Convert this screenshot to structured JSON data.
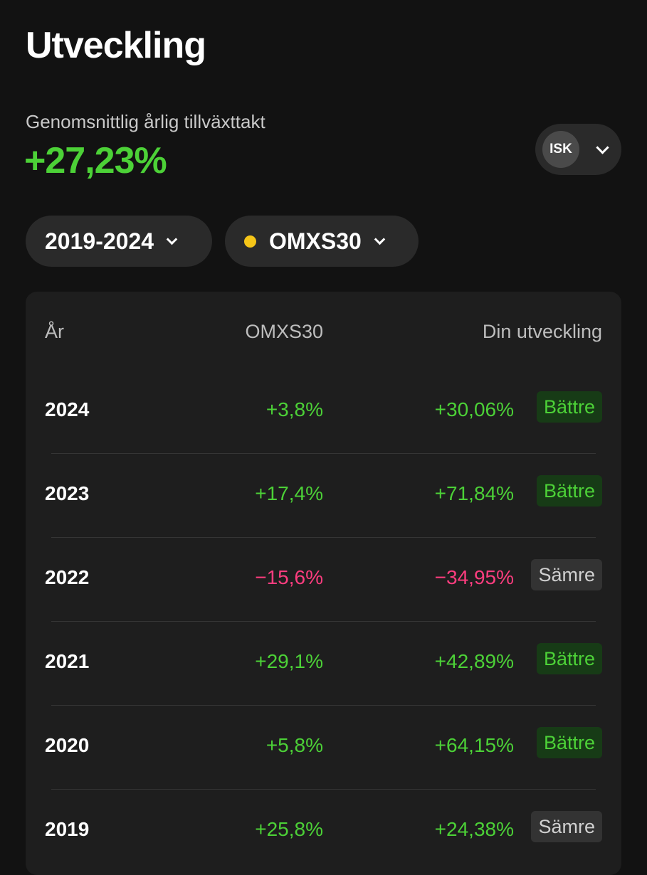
{
  "page": {
    "title": "Utveckling"
  },
  "summary": {
    "cagr_label": "Genomsnittlig årlig tillväxttakt",
    "cagr_value": "+27,23%",
    "account_type": "ISK"
  },
  "filters": {
    "period": "2019-2024",
    "index": "OMXS30",
    "index_color": "#f5c518"
  },
  "table": {
    "headers": {
      "year": "År",
      "index": "OMXS30",
      "yours": "Din utveckling"
    },
    "rows": [
      {
        "year": "2024",
        "index": "+3,8%",
        "index_sign": "pos",
        "yours": "+30,06%",
        "yours_sign": "pos",
        "badge": "Bättre",
        "badge_type": "better"
      },
      {
        "year": "2023",
        "index": "+17,4%",
        "index_sign": "pos",
        "yours": "+71,84%",
        "yours_sign": "pos",
        "badge": "Bättre",
        "badge_type": "better"
      },
      {
        "year": "2022",
        "index": "−15,6%",
        "index_sign": "neg",
        "yours": "−34,95%",
        "yours_sign": "neg",
        "badge": "Sämre",
        "badge_type": "worse"
      },
      {
        "year": "2021",
        "index": "+29,1%",
        "index_sign": "pos",
        "yours": "+42,89%",
        "yours_sign": "pos",
        "badge": "Bättre",
        "badge_type": "better"
      },
      {
        "year": "2020",
        "index": "+5,8%",
        "index_sign": "pos",
        "yours": "+64,15%",
        "yours_sign": "pos",
        "badge": "Bättre",
        "badge_type": "better"
      },
      {
        "year": "2019",
        "index": "+25,8%",
        "index_sign": "pos",
        "yours": "+24,38%",
        "yours_sign": "pos",
        "badge": "Sämre",
        "badge_type": "worse"
      }
    ]
  },
  "colors": {
    "positive": "#4cd137",
    "negative": "#ff3d7f",
    "background": "#121212",
    "card": "#1e1e1e"
  }
}
